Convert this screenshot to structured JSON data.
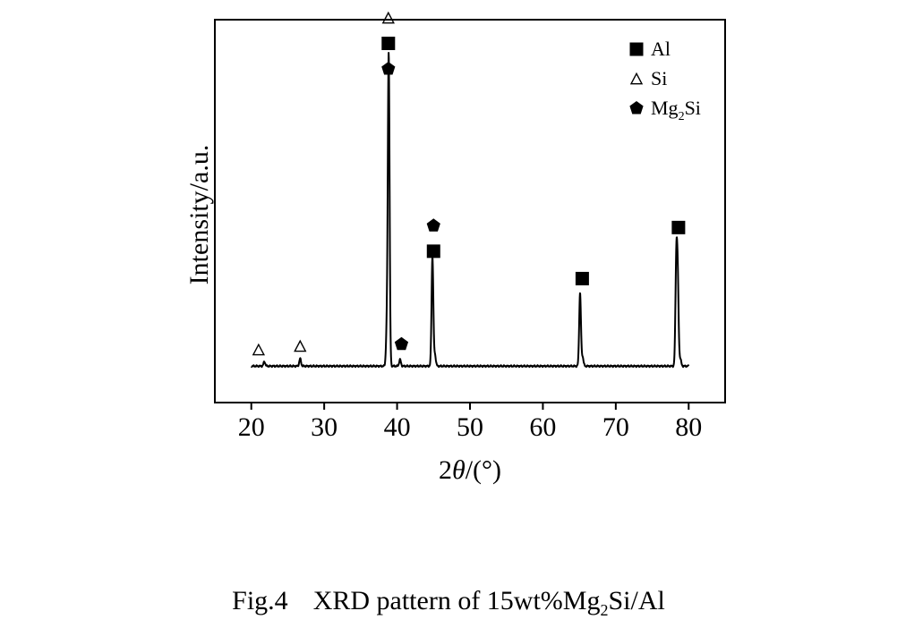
{
  "caption": {
    "label": "Fig.4",
    "text_before_sub": "XRD pattern of 15wt%Mg",
    "subscript": "2",
    "text_after_sub": "Si/Al"
  },
  "chart_data": {
    "type": "line",
    "title": "",
    "xlabel_prefix": "2",
    "xlabel_symbol": "θ",
    "xlabel_suffix": "/(°)",
    "ylabel": "Intensity/a.u.",
    "xlim": [
      15,
      85
    ],
    "ylim": [
      0,
      105
    ],
    "xticks": [
      20,
      30,
      40,
      50,
      60,
      70,
      80
    ],
    "grid": false,
    "legend_position": "top-right",
    "legend": [
      {
        "marker": "square",
        "text": "Al",
        "sub": "",
        "after": ""
      },
      {
        "marker": "triangle",
        "text": "Si",
        "sub": "",
        "after": ""
      },
      {
        "marker": "pentagon",
        "text": "Mg",
        "sub": "2",
        "after": "Si"
      }
    ],
    "baseline": 10,
    "peaks": [
      {
        "x": 21.8,
        "y": 11.2
      },
      {
        "x": 26.7,
        "y": 12.0
      },
      {
        "x": 38.6,
        "y": 20.0
      },
      {
        "x": 38.85,
        "y": 95.0
      },
      {
        "x": 40.4,
        "y": 11.8
      },
      {
        "x": 44.85,
        "y": 40.0
      },
      {
        "x": 45.2,
        "y": 13.0
      },
      {
        "x": 65.1,
        "y": 30.0
      },
      {
        "x": 65.45,
        "y": 12.5
      },
      {
        "x": 78.3,
        "y": 37.5
      },
      {
        "x": 78.5,
        "y": 32.0
      },
      {
        "x": 78.85,
        "y": 12.0
      }
    ],
    "markers": [
      {
        "type": "triangle",
        "x": 21.0,
        "y": 14.5
      },
      {
        "type": "triangle",
        "x": 26.7,
        "y": 15.5
      },
      {
        "type": "triangle",
        "x": 38.8,
        "y": 105.5
      },
      {
        "type": "square",
        "x": 38.8,
        "y": 98.5
      },
      {
        "type": "pentagon",
        "x": 38.8,
        "y": 91.5
      },
      {
        "type": "pentagon",
        "x": 40.6,
        "y": 16.0
      },
      {
        "type": "pentagon",
        "x": 45.0,
        "y": 48.5
      },
      {
        "type": "square",
        "x": 45.0,
        "y": 41.5
      },
      {
        "type": "square",
        "x": 65.4,
        "y": 34.0
      },
      {
        "type": "square",
        "x": 78.6,
        "y": 48.0
      }
    ]
  }
}
